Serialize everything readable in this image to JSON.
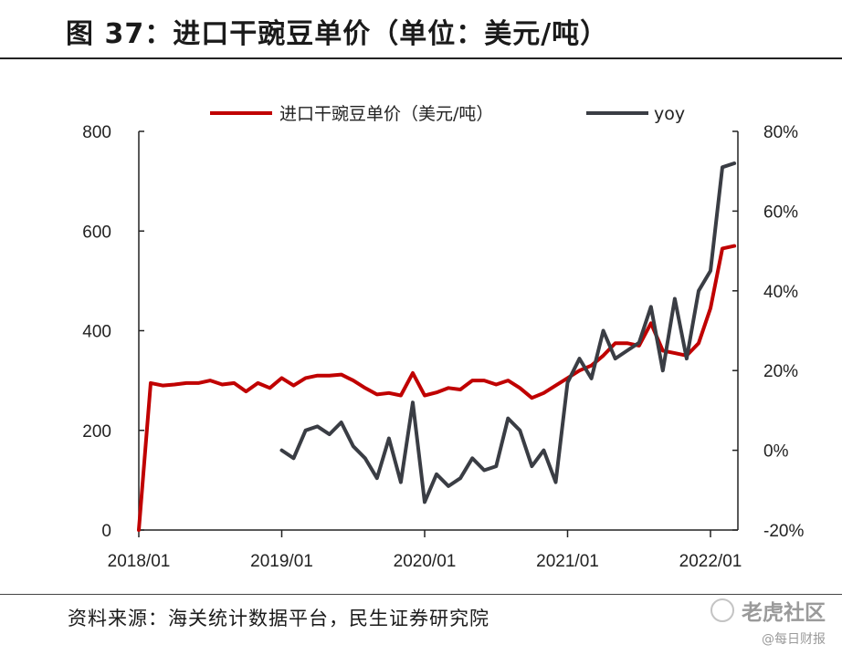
{
  "header": {
    "title": "图 37：进口干豌豆单价（单位：美元/吨）"
  },
  "footer": {
    "source": "资料来源：海关统计数据平台，民生证券研究院"
  },
  "watermark": {
    "brand": "老虎社区",
    "sub": "@每日财报"
  },
  "colors": {
    "price": "#c00000",
    "yoy": "#3a3d44",
    "axis": "#222222"
  },
  "chart_data": {
    "type": "line",
    "legend": {
      "position": "top",
      "items": [
        "进口干豌豆单价（美元/吨）",
        "yoy"
      ]
    },
    "x_tick_labels": [
      "2018/01",
      "2019/01",
      "2020/01",
      "2021/01",
      "2022/01"
    ],
    "y_left": {
      "lim": [
        0,
        800
      ],
      "ticks": [
        "0",
        "200",
        "400",
        "600",
        "800"
      ]
    },
    "y_right": {
      "lim": [
        -20,
        80
      ],
      "ticks": [
        "-20%",
        "0%",
        "20%",
        "40%",
        "60%",
        "80%"
      ]
    },
    "grid": false,
    "series": [
      {
        "name": "进口干豌豆单价（美元/吨）",
        "axis": "left",
        "x": [
          "2018/01",
          "2018/02",
          "2018/03",
          "2018/04",
          "2018/05",
          "2018/06",
          "2018/07",
          "2018/08",
          "2018/09",
          "2018/10",
          "2018/11",
          "2018/12",
          "2019/01",
          "2019/02",
          "2019/03",
          "2019/04",
          "2019/05",
          "2019/06",
          "2019/07",
          "2019/08",
          "2019/09",
          "2019/10",
          "2019/11",
          "2019/12",
          "2020/01",
          "2020/02",
          "2020/03",
          "2020/04",
          "2020/05",
          "2020/06",
          "2020/07",
          "2020/08",
          "2020/09",
          "2020/10",
          "2020/11",
          "2020/12",
          "2021/01",
          "2021/02",
          "2021/03",
          "2021/04",
          "2021/05",
          "2021/06",
          "2021/07",
          "2021/08",
          "2021/09",
          "2021/10",
          "2021/11",
          "2021/12",
          "2022/01",
          "2022/02",
          "2022/03"
        ],
        "values": [
          0,
          295,
          290,
          292,
          295,
          295,
          300,
          292,
          295,
          278,
          295,
          285,
          305,
          290,
          305,
          310,
          310,
          312,
          300,
          285,
          272,
          275,
          270,
          315,
          270,
          276,
          285,
          282,
          300,
          300,
          292,
          300,
          285,
          265,
          275,
          290,
          305,
          320,
          330,
          350,
          375,
          375,
          370,
          415,
          360,
          355,
          350,
          375,
          445,
          565,
          570
        ]
      },
      {
        "name": "yoy",
        "axis": "right",
        "x": [
          "2019/01",
          "2019/02",
          "2019/03",
          "2019/04",
          "2019/05",
          "2019/06",
          "2019/07",
          "2019/08",
          "2019/09",
          "2019/10",
          "2019/11",
          "2019/12",
          "2020/01",
          "2020/02",
          "2020/03",
          "2020/04",
          "2020/05",
          "2020/06",
          "2020/07",
          "2020/08",
          "2020/09",
          "2020/10",
          "2020/11",
          "2020/12",
          "2021/01",
          "2021/02",
          "2021/03",
          "2021/04",
          "2021/05",
          "2021/06",
          "2021/07",
          "2021/08",
          "2021/09",
          "2021/10",
          "2021/11",
          "2021/12",
          "2022/01",
          "2022/02",
          "2022/03"
        ],
        "values": [
          0,
          -2,
          5,
          6,
          4,
          7,
          1,
          -2,
          -7,
          3,
          -8,
          12,
          -13,
          -6,
          -9,
          -7,
          -2,
          -5,
          -4,
          8,
          5,
          -4,
          0,
          -8,
          17,
          23,
          18,
          30,
          23,
          25,
          27,
          36,
          20,
          38,
          23,
          40,
          45,
          71,
          72
        ]
      }
    ]
  }
}
